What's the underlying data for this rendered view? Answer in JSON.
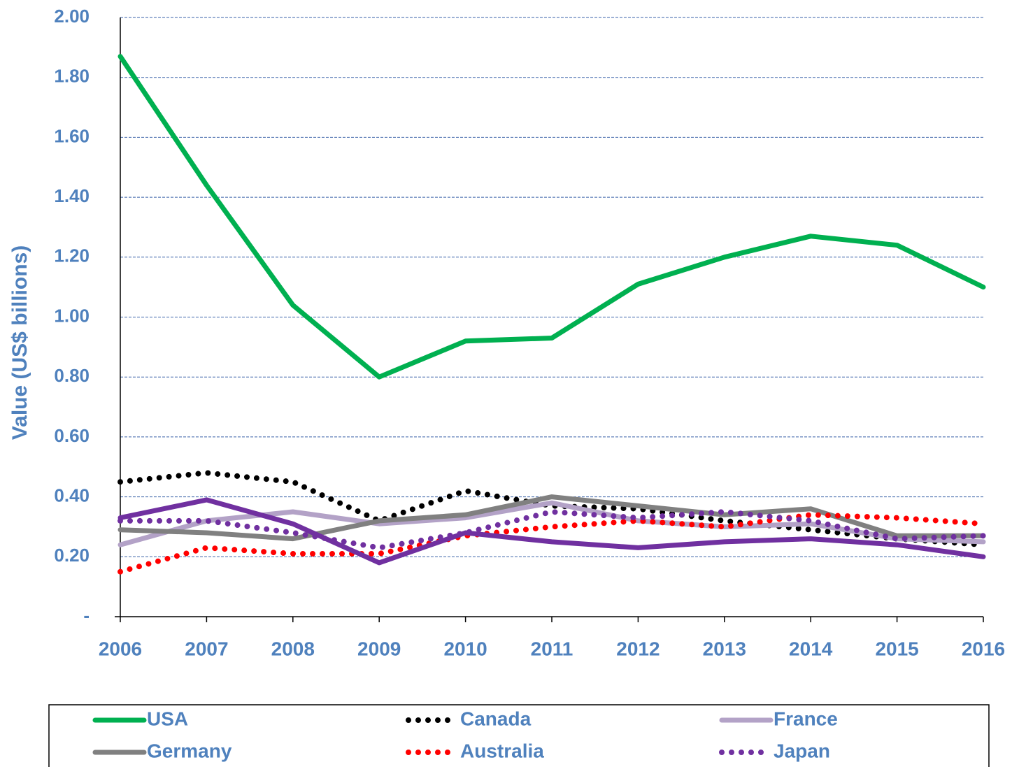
{
  "chart_data": {
    "type": "line",
    "ylabel": "Value (US$ billions)",
    "x": [
      2006,
      2007,
      2008,
      2009,
      2010,
      2011,
      2012,
      2013,
      2014,
      2015,
      2016
    ],
    "xlim": [
      2006,
      2016
    ],
    "xticks": [
      2006,
      2007,
      2008,
      2009,
      2010,
      2011,
      2012,
      2013,
      2014,
      2015,
      2016
    ],
    "ylim": [
      0,
      2
    ],
    "yticks": [
      {
        "value": 0,
        "label": "-"
      },
      {
        "value": 0.2,
        "label": "0.20"
      },
      {
        "value": 0.4,
        "label": "0.40"
      },
      {
        "value": 0.6,
        "label": "0.60"
      },
      {
        "value": 0.8,
        "label": "0.80"
      },
      {
        "value": 1.0,
        "label": "1.00"
      },
      {
        "value": 1.2,
        "label": "1.20"
      },
      {
        "value": 1.4,
        "label": "1.40"
      },
      {
        "value": 1.6,
        "label": "1.60"
      },
      {
        "value": 1.8,
        "label": "1.80"
      },
      {
        "value": 2.0,
        "label": "2.00"
      }
    ],
    "grid": true,
    "legend": "bottom",
    "series": [
      {
        "name": "USA",
        "color": "#00b050",
        "style": "solid",
        "values": [
          1.87,
          1.44,
          1.04,
          0.8,
          0.92,
          0.93,
          1.11,
          1.2,
          1.27,
          1.24,
          1.1
        ]
      },
      {
        "name": "Canada",
        "color": "#000000",
        "style": "dotted",
        "values": [
          0.45,
          0.48,
          0.45,
          0.32,
          0.42,
          0.37,
          0.36,
          0.32,
          0.29,
          0.26,
          0.24
        ]
      },
      {
        "name": "France",
        "color": "#b3a2c7",
        "style": "solid",
        "values": [
          0.24,
          0.32,
          0.35,
          0.31,
          0.33,
          0.38,
          0.32,
          0.3,
          0.31,
          0.26,
          0.25
        ]
      },
      {
        "name": "Germany",
        "color": "#808080",
        "style": "solid",
        "values": [
          0.29,
          0.28,
          0.26,
          0.32,
          0.34,
          0.4,
          0.37,
          0.34,
          0.36,
          0.27,
          0.27
        ]
      },
      {
        "name": "Australia",
        "color": "#ff0000",
        "style": "dotted",
        "values": [
          0.15,
          0.23,
          0.21,
          0.21,
          0.27,
          0.3,
          0.32,
          0.3,
          0.34,
          0.33,
          0.31
        ]
      },
      {
        "name": "Japan",
        "color": "#7030a0",
        "style": "dotted",
        "values": [
          0.32,
          0.32,
          0.28,
          0.23,
          0.28,
          0.35,
          0.33,
          0.35,
          0.32,
          0.26,
          0.27
        ]
      },
      {
        "color": "#7030a0",
        "style": "solid",
        "values": [
          0.33,
          0.39,
          0.31,
          0.18,
          0.28,
          0.25,
          0.23,
          0.25,
          0.26,
          0.24,
          0.2
        ]
      }
    ]
  }
}
